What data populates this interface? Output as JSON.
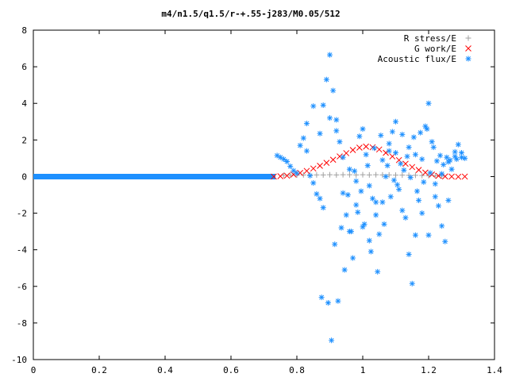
{
  "chart_data": {
    "type": "scatter",
    "title": "m4/n1.5/q1.5/r-+.55-j283/M0.05/512",
    "xlabel": "",
    "ylabel": "",
    "xlim": [
      0,
      1.4
    ],
    "ylim": [
      -10,
      8
    ],
    "x_ticks": [
      0,
      0.2,
      0.4,
      0.6,
      0.8,
      1,
      1.2,
      1.4
    ],
    "x_tick_labels": [
      "0",
      "0.2",
      "0.4",
      "0.6",
      "0.8",
      "1",
      "1.2",
      "1.4"
    ],
    "y_ticks": [
      -10,
      -8,
      -6,
      -4,
      -2,
      0,
      2,
      4,
      6,
      8
    ],
    "y_tick_labels": [
      "-10",
      "-8",
      "-6",
      "-4",
      "-2",
      "0",
      "2",
      "4",
      "6",
      "8"
    ],
    "grid": false,
    "legend_position": "top-right",
    "series": [
      {
        "name": "R stress/E",
        "marker": "plus",
        "color": "#a0a0a0",
        "points": [
          [
            0.76,
            0.07
          ],
          [
            0.78,
            0.08
          ],
          [
            0.8,
            0.08
          ],
          [
            0.82,
            0.09
          ],
          [
            0.84,
            0.08
          ],
          [
            0.86,
            0.09
          ],
          [
            0.88,
            0.09
          ],
          [
            0.9,
            0.1
          ],
          [
            0.92,
            0.09
          ],
          [
            0.94,
            0.1
          ],
          [
            0.96,
            0.1
          ],
          [
            0.98,
            0.09
          ],
          [
            1.0,
            0.1
          ],
          [
            1.02,
            0.09
          ],
          [
            1.04,
            0.1
          ],
          [
            1.06,
            0.09
          ],
          [
            1.08,
            0.09
          ],
          [
            1.1,
            0.08
          ],
          [
            1.12,
            0.08
          ],
          [
            1.14,
            0.07
          ],
          [
            1.16,
            0.07
          ],
          [
            1.18,
            0.06
          ],
          [
            1.2,
            0.05
          ],
          [
            1.22,
            0.04
          ],
          [
            1.24,
            0.03
          ]
        ]
      },
      {
        "name": "G work/E",
        "marker": "cross",
        "color": "#ff0000",
        "points": [
          [
            0.73,
            0.0
          ],
          [
            0.75,
            0.02
          ],
          [
            0.77,
            0.05
          ],
          [
            0.79,
            0.11
          ],
          [
            0.81,
            0.2
          ],
          [
            0.83,
            0.31
          ],
          [
            0.85,
            0.44
          ],
          [
            0.87,
            0.59
          ],
          [
            0.89,
            0.75
          ],
          [
            0.91,
            0.92
          ],
          [
            0.93,
            1.1
          ],
          [
            0.95,
            1.28
          ],
          [
            0.97,
            1.45
          ],
          [
            0.99,
            1.58
          ],
          [
            1.01,
            1.64
          ],
          [
            1.03,
            1.6
          ],
          [
            1.05,
            1.48
          ],
          [
            1.07,
            1.3
          ],
          [
            1.09,
            1.1
          ],
          [
            1.11,
            0.9
          ],
          [
            1.13,
            0.7
          ],
          [
            1.15,
            0.52
          ],
          [
            1.17,
            0.36
          ],
          [
            1.19,
            0.22
          ],
          [
            1.21,
            0.11
          ],
          [
            1.23,
            0.04
          ],
          [
            1.25,
            0.01
          ],
          [
            1.27,
            0.0
          ],
          [
            1.29,
            -0.01
          ],
          [
            1.31,
            0.0
          ]
        ]
      },
      {
        "name": "Acoustic flux/E",
        "marker": "star",
        "color": "#1e90ff",
        "points": [
          [
            0.74,
            1.15
          ],
          [
            0.75,
            1.05
          ],
          [
            0.76,
            0.95
          ],
          [
            0.77,
            0.82
          ],
          [
            0.78,
            0.56
          ],
          [
            0.79,
            0.32
          ],
          [
            0.8,
            0.18
          ],
          [
            0.81,
            1.7
          ],
          [
            0.82,
            2.1
          ],
          [
            0.83,
            1.4
          ],
          [
            0.84,
            0.05
          ],
          [
            0.85,
            -0.35
          ],
          [
            0.86,
            -0.95
          ],
          [
            0.87,
            -1.2
          ],
          [
            0.88,
            -1.7
          ],
          [
            0.89,
            5.3
          ],
          [
            0.9,
            6.65
          ],
          [
            0.91,
            4.7
          ],
          [
            0.92,
            3.1
          ],
          [
            0.93,
            1.9
          ],
          [
            0.94,
            -0.9
          ],
          [
            0.95,
            -2.1
          ],
          [
            0.96,
            -3.0
          ],
          [
            0.97,
            -4.45
          ],
          [
            0.98,
            -0.25
          ],
          [
            0.99,
            2.2
          ],
          [
            1.0,
            2.6
          ],
          [
            1.01,
            1.2
          ],
          [
            1.02,
            -0.5
          ],
          [
            1.03,
            -1.2
          ],
          [
            1.04,
            -2.1
          ],
          [
            1.05,
            -3.15
          ],
          [
            1.06,
            -1.4
          ],
          [
            1.07,
            0.0
          ],
          [
            1.08,
            1.8
          ],
          [
            1.09,
            2.45
          ],
          [
            1.1,
            1.3
          ],
          [
            1.11,
            -0.7
          ],
          [
            1.12,
            -1.85
          ],
          [
            1.13,
            -2.25
          ],
          [
            1.14,
            -4.25
          ],
          [
            1.15,
            -5.85
          ],
          [
            1.16,
            -3.2
          ],
          [
            1.17,
            -1.3
          ],
          [
            1.18,
            0.95
          ],
          [
            1.19,
            2.75
          ],
          [
            1.2,
            4.0
          ],
          [
            1.21,
            1.9
          ],
          [
            1.22,
            -0.4
          ],
          [
            1.23,
            -1.6
          ],
          [
            1.24,
            -2.7
          ],
          [
            1.25,
            -3.55
          ],
          [
            1.26,
            -1.3
          ],
          [
            1.27,
            0.4
          ],
          [
            1.28,
            1.35
          ],
          [
            1.29,
            1.75
          ],
          [
            1.3,
            1.3
          ],
          [
            1.31,
            1.0
          ],
          [
            0.905,
            -8.95
          ],
          [
            0.925,
            -6.8
          ],
          [
            0.945,
            -5.1
          ],
          [
            0.965,
            -3.0
          ],
          [
            0.985,
            -1.95
          ],
          [
            1.005,
            -2.6
          ],
          [
            1.025,
            -4.1
          ],
          [
            1.045,
            -5.2
          ],
          [
            1.065,
            -2.6
          ],
          [
            1.085,
            -1.1
          ],
          [
            1.105,
            -0.45
          ],
          [
            1.125,
            0.35
          ],
          [
            1.145,
            -0.05
          ],
          [
            1.165,
            -0.8
          ],
          [
            1.185,
            -0.3
          ],
          [
            1.205,
            0.2
          ],
          [
            1.225,
            0.85
          ],
          [
            1.245,
            0.65
          ],
          [
            1.265,
            0.9
          ],
          [
            1.285,
            0.95
          ],
          [
            0.875,
            -6.6
          ],
          [
            0.895,
            -6.9
          ],
          [
            0.915,
            -3.7
          ],
          [
            0.935,
            -2.8
          ],
          [
            0.955,
            -1.0
          ],
          [
            0.975,
            0.3
          ],
          [
            0.995,
            -0.8
          ],
          [
            1.015,
            0.6
          ],
          [
            1.035,
            1.55
          ],
          [
            1.055,
            2.25
          ],
          [
            1.075,
            0.6
          ],
          [
            1.095,
            -0.2
          ],
          [
            1.115,
            0.7
          ],
          [
            1.135,
            1.1
          ],
          [
            1.155,
            2.15
          ],
          [
            1.175,
            2.4
          ],
          [
            1.195,
            2.6
          ],
          [
            1.215,
            1.6
          ],
          [
            1.235,
            1.15
          ],
          [
            1.255,
            1.05
          ],
          [
            0.83,
            2.9
          ],
          [
            0.85,
            3.85
          ],
          [
            0.87,
            2.35
          ],
          [
            0.88,
            3.9
          ],
          [
            0.9,
            3.2
          ],
          [
            0.92,
            2.5
          ],
          [
            0.94,
            1.05
          ],
          [
            0.96,
            0.4
          ],
          [
            0.98,
            -1.55
          ],
          [
            1.0,
            -2.75
          ],
          [
            1.02,
            -3.5
          ],
          [
            1.04,
            -1.4
          ],
          [
            1.06,
            0.9
          ],
          [
            1.08,
            1.4
          ],
          [
            1.1,
            3.0
          ],
          [
            1.12,
            2.3
          ],
          [
            1.14,
            1.6
          ],
          [
            1.16,
            1.2
          ],
          [
            1.18,
            -2.0
          ],
          [
            1.2,
            -3.2
          ],
          [
            1.22,
            -1.1
          ],
          [
            1.24,
            0.15
          ],
          [
            1.26,
            0.8
          ],
          [
            1.28,
            1.1
          ],
          [
            1.3,
            1.05
          ]
        ]
      }
    ]
  }
}
